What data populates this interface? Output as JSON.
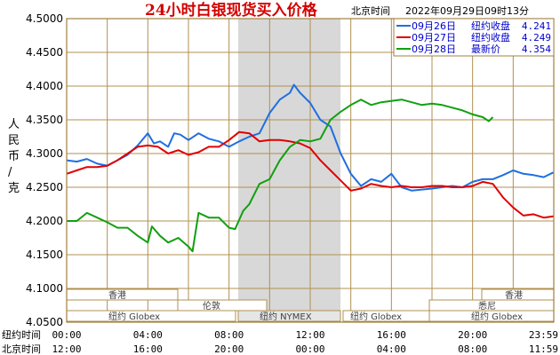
{
  "header": {
    "title": "24小时白银现货买入价格",
    "timezone": "北京时间",
    "timestamp": "2022年09月29日09时13分"
  },
  "colors": {
    "frame": "#a08040",
    "grid": "#b09050",
    "shade": "#d8d8d8",
    "sep26": "#1f6fe0",
    "sep27": "#e00000",
    "sep28": "#10a010",
    "legend_text": "#0000cc"
  },
  "legend": [
    {
      "date": "09月26日",
      "label": "纽约收盘",
      "value": "4.241",
      "color": "#1f6fe0"
    },
    {
      "date": "09月27日",
      "label": "纽约收盘",
      "value": "4.249",
      "color": "#e00000"
    },
    {
      "date": "09月28日",
      "label": "最新价",
      "value": "4.354",
      "color": "#10a010"
    }
  ],
  "bottom_axis": {
    "ny_label": "纽约时间",
    "bj_label": "北京时间",
    "ny_ticks": [
      "00:00",
      "04:00",
      "08:00",
      "12:00",
      "16:00",
      "20:00",
      "23:59"
    ],
    "bj_ticks": [
      "12:00",
      "16:00",
      "20:00",
      "00:00",
      "04:00",
      "08:00",
      "11:59"
    ]
  },
  "markets": {
    "hongkong_1": "香港",
    "london": "伦敦",
    "globex_1": "纽约 Globex",
    "nymex": "纽约 NYMEX",
    "globex_2": "纽约 Globex",
    "hongkong_2": "香港",
    "sydney": "悉尼",
    "globex_3": "纽约 Globex"
  },
  "chart_data": {
    "type": "line",
    "title": "24小时白银现货买入价格",
    "ylabel": "人民币/克",
    "ylim": [
      4.05,
      4.5
    ],
    "yticks": [
      "4.5000",
      "4.4500",
      "4.4000",
      "4.3500",
      "4.3000",
      "4.2500",
      "4.2000",
      "4.1500",
      "4.1000",
      "4.0500"
    ],
    "xlim": [
      0,
      24
    ],
    "x_unit": "New York time, hours",
    "grid": true,
    "legend_position": "top-right",
    "series": [
      {
        "name": "09月26日",
        "color": "#1f6fe0",
        "points": [
          [
            0,
            4.29
          ],
          [
            0.5,
            4.288
          ],
          [
            1,
            4.292
          ],
          [
            1.5,
            4.285
          ],
          [
            2,
            4.282
          ],
          [
            2.5,
            4.29
          ],
          [
            3,
            4.298
          ],
          [
            3.5,
            4.312
          ],
          [
            4,
            4.33
          ],
          [
            4.3,
            4.315
          ],
          [
            4.6,
            4.318
          ],
          [
            5,
            4.31
          ],
          [
            5.3,
            4.33
          ],
          [
            5.6,
            4.328
          ],
          [
            6,
            4.32
          ],
          [
            6.5,
            4.33
          ],
          [
            7,
            4.322
          ],
          [
            7.5,
            4.318
          ],
          [
            8,
            4.31
          ],
          [
            8.5,
            4.318
          ],
          [
            9,
            4.325
          ],
          [
            9.5,
            4.33
          ],
          [
            10,
            4.36
          ],
          [
            10.5,
            4.38
          ],
          [
            11,
            4.39
          ],
          [
            11.2,
            4.402
          ],
          [
            11.5,
            4.39
          ],
          [
            12,
            4.375
          ],
          [
            12.5,
            4.35
          ],
          [
            13,
            4.34
          ],
          [
            13.5,
            4.3
          ],
          [
            14,
            4.27
          ],
          [
            14.5,
            4.252
          ],
          [
            15,
            4.262
          ],
          [
            15.5,
            4.258
          ],
          [
            16,
            4.27
          ],
          [
            16.5,
            4.25
          ],
          [
            17,
            4.245
          ],
          [
            18,
            4.248
          ],
          [
            18.5,
            4.25
          ],
          [
            19,
            4.252
          ],
          [
            19.5,
            4.25
          ],
          [
            20,
            4.258
          ],
          [
            20.5,
            4.262
          ],
          [
            21,
            4.262
          ],
          [
            21.5,
            4.268
          ],
          [
            22,
            4.275
          ],
          [
            22.5,
            4.27
          ],
          [
            23,
            4.268
          ],
          [
            23.5,
            4.265
          ],
          [
            23.98,
            4.272
          ]
        ]
      },
      {
        "name": "09月27日",
        "color": "#e00000",
        "points": [
          [
            0,
            4.27
          ],
          [
            0.5,
            4.275
          ],
          [
            1,
            4.28
          ],
          [
            1.5,
            4.28
          ],
          [
            2,
            4.282
          ],
          [
            2.5,
            4.29
          ],
          [
            3,
            4.3
          ],
          [
            3.5,
            4.31
          ],
          [
            4,
            4.312
          ],
          [
            4.5,
            4.31
          ],
          [
            5,
            4.3
          ],
          [
            5.5,
            4.305
          ],
          [
            6,
            4.298
          ],
          [
            6.5,
            4.302
          ],
          [
            7,
            4.31
          ],
          [
            7.5,
            4.31
          ],
          [
            8,
            4.32
          ],
          [
            8.5,
            4.332
          ],
          [
            9,
            4.33
          ],
          [
            9.5,
            4.318
          ],
          [
            10,
            4.32
          ],
          [
            10.5,
            4.32
          ],
          [
            11,
            4.318
          ],
          [
            11.5,
            4.315
          ],
          [
            12,
            4.308
          ],
          [
            12.5,
            4.29
          ],
          [
            13,
            4.275
          ],
          [
            13.5,
            4.26
          ],
          [
            14,
            4.245
          ],
          [
            14.5,
            4.248
          ],
          [
            15,
            4.255
          ],
          [
            15.5,
            4.252
          ],
          [
            16,
            4.25
          ],
          [
            16.5,
            4.252
          ],
          [
            17,
            4.25
          ],
          [
            17.5,
            4.25
          ],
          [
            18,
            4.252
          ],
          [
            18.5,
            4.252
          ],
          [
            19,
            4.25
          ],
          [
            19.5,
            4.25
          ],
          [
            20,
            4.252
          ],
          [
            20.5,
            4.258
          ],
          [
            21,
            4.255
          ],
          [
            21.5,
            4.235
          ],
          [
            22,
            4.22
          ],
          [
            22.5,
            4.208
          ],
          [
            23,
            4.21
          ],
          [
            23.5,
            4.205
          ],
          [
            23.98,
            4.207
          ]
        ]
      },
      {
        "name": "09月28日",
        "color": "#10a010",
        "points": [
          [
            0,
            4.2
          ],
          [
            0.5,
            4.2
          ],
          [
            1,
            4.212
          ],
          [
            1.5,
            4.205
          ],
          [
            2,
            4.198
          ],
          [
            2.5,
            4.19
          ],
          [
            3,
            4.19
          ],
          [
            3.5,
            4.178
          ],
          [
            4,
            4.168
          ],
          [
            4.2,
            4.192
          ],
          [
            4.6,
            4.178
          ],
          [
            5,
            4.168
          ],
          [
            5.5,
            4.175
          ],
          [
            6,
            4.162
          ],
          [
            6.2,
            4.155
          ],
          [
            6.5,
            4.212
          ],
          [
            7,
            4.205
          ],
          [
            7.5,
            4.205
          ],
          [
            8,
            4.19
          ],
          [
            8.3,
            4.188
          ],
          [
            8.7,
            4.215
          ],
          [
            9,
            4.225
          ],
          [
            9.5,
            4.255
          ],
          [
            10,
            4.262
          ],
          [
            10.5,
            4.29
          ],
          [
            11,
            4.31
          ],
          [
            11.5,
            4.32
          ],
          [
            12,
            4.318
          ],
          [
            12.5,
            4.322
          ],
          [
            13,
            4.35
          ],
          [
            13.5,
            4.362
          ],
          [
            14,
            4.372
          ],
          [
            14.5,
            4.38
          ],
          [
            15,
            4.372
          ],
          [
            15.5,
            4.376
          ],
          [
            16,
            4.378
          ],
          [
            16.5,
            4.38
          ],
          [
            17,
            4.376
          ],
          [
            17.5,
            4.372
          ],
          [
            18,
            4.374
          ],
          [
            18.5,
            4.372
          ],
          [
            19,
            4.368
          ],
          [
            19.5,
            4.364
          ],
          [
            20,
            4.358
          ],
          [
            20.5,
            4.354
          ],
          [
            20.8,
            4.348
          ],
          [
            21,
            4.354
          ]
        ]
      }
    ]
  }
}
